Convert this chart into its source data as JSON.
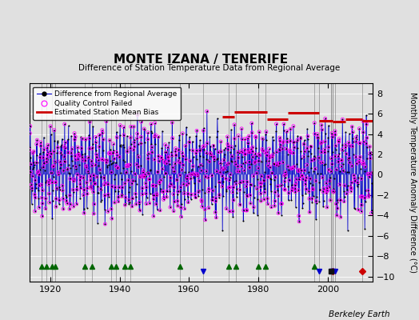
{
  "title": "MONTE IZANA / TENERIFE",
  "subtitle": "Difference of Station Temperature Data from Regional Average",
  "ylabel": "Monthly Temperature Anomaly Difference (°C)",
  "xlabel_credit": "Berkeley Earth",
  "xlim": [
    1914.0,
    2013.0
  ],
  "ylim": [
    -10.5,
    9.0
  ],
  "yticks": [
    -10,
    -8,
    -6,
    -4,
    -2,
    0,
    2,
    4,
    6,
    8
  ],
  "xticks": [
    1920,
    1940,
    1960,
    1980,
    2000
  ],
  "bg_color": "#e0e0e0",
  "seed": 42,
  "start_year": 1914,
  "end_year": 2013,
  "bias_segments": [
    {
      "start": 1969.5,
      "end": 1973.0,
      "value": 5.7
    },
    {
      "start": 1973.0,
      "end": 1982.5,
      "value": 6.2
    },
    {
      "start": 1982.5,
      "end": 1988.5,
      "value": 5.5
    },
    {
      "start": 1988.5,
      "end": 1997.5,
      "value": 6.1
    },
    {
      "start": 1997.5,
      "end": 2001.5,
      "value": 5.3
    },
    {
      "start": 2001.5,
      "end": 2005.0,
      "value": 5.2
    },
    {
      "start": 2005.0,
      "end": 2010.0,
      "value": 5.5
    },
    {
      "start": 2010.0,
      "end": 2013.0,
      "value": 5.3
    }
  ],
  "station_moves": [
    2001.3,
    2010.0
  ],
  "record_gaps": [
    1917.5,
    1919.0,
    1920.5,
    1921.5,
    1930.0,
    1932.0,
    1937.5,
    1939.0,
    1941.5,
    1943.0,
    1957.5,
    1971.5,
    1973.5,
    1980.0,
    1982.0,
    1996.0
  ],
  "time_of_obs_changes": [
    1964.0,
    1997.5,
    2001.0,
    2001.5,
    2002.0
  ],
  "empirical_breaks": [
    2001.0
  ],
  "line_color": "#0000cc",
  "qc_color": "#ff00ff",
  "bias_color": "#cc0000",
  "station_move_color": "#cc0000",
  "record_gap_color": "#006600",
  "time_obs_color": "#0000cc",
  "empirical_break_color": "#111111",
  "grid_color": "#ffffff"
}
